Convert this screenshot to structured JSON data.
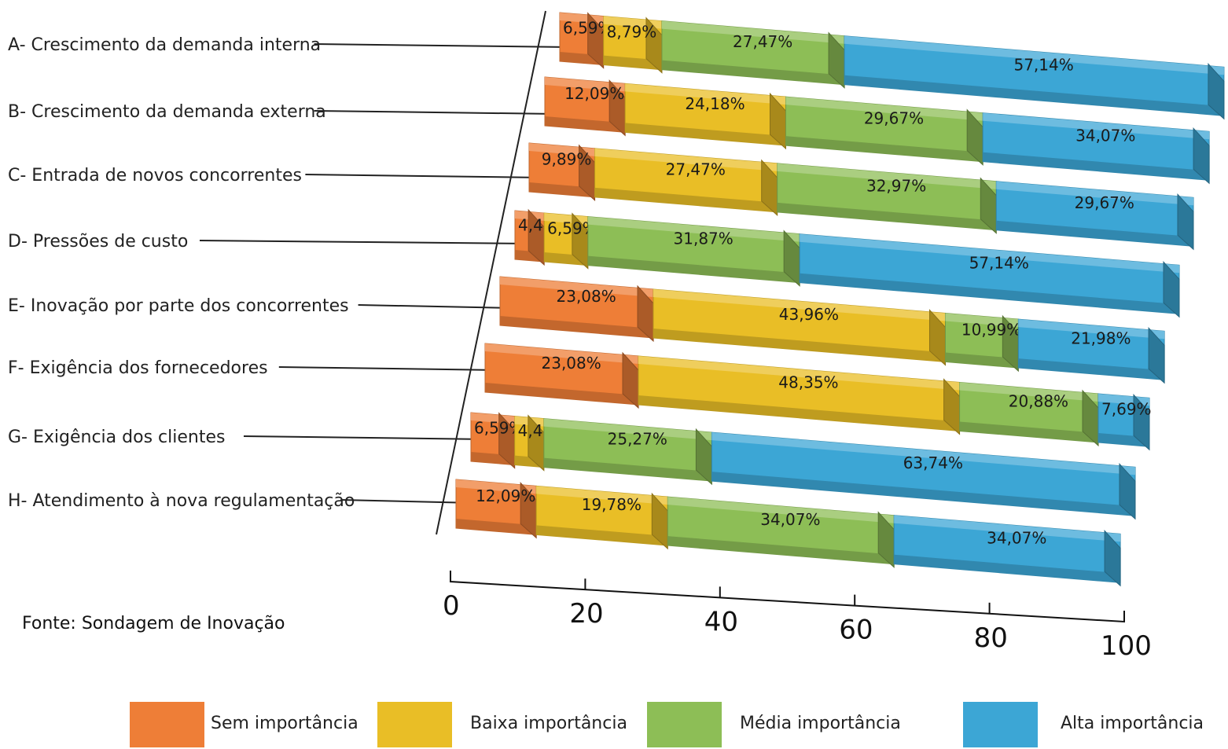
{
  "chart_data": {
    "type": "bar",
    "stacked": true,
    "orientation": "horizontal",
    "style": "3d",
    "categories": [
      "A- Crescimento da demanda interna",
      "B- Crescimento da demanda externa",
      "C- Entrada de novos concorrentes",
      "D- Pressões de custo",
      "E- Inovação por parte dos concorrentes",
      "F- Exigência dos fornecedores",
      "G- Exigência dos clientes",
      "H- Atendimento à nova regulamentação"
    ],
    "series": [
      {
        "name": "Sem importância",
        "color": "#EE7E37",
        "values": [
          6.59,
          12.09,
          9.89,
          4.4,
          23.08,
          23.08,
          6.59,
          12.09
        ],
        "labels": [
          "6,59%",
          "12,09%",
          "9,89%",
          "4,40%",
          "23,08%",
          "23,08%",
          "6,59%",
          "12,09%"
        ]
      },
      {
        "name": "Baixa importância",
        "color": "#E9BE26",
        "values": [
          8.79,
          24.18,
          27.47,
          6.59,
          43.96,
          48.35,
          4.4,
          19.78
        ],
        "labels": [
          "8,79%",
          "24,18%",
          "27,47%",
          "6,59%",
          "43,96%",
          "48,35%",
          "4,40%",
          "19,78%"
        ]
      },
      {
        "name": "Média importância",
        "color": "#8DBE56",
        "values": [
          27.47,
          29.67,
          32.97,
          31.87,
          10.99,
          20.88,
          25.27,
          34.07
        ],
        "labels": [
          "27,47%",
          "29,67%",
          "32,97%",
          "31,87%",
          "10,99%",
          "20,88%",
          "25,27%",
          "34,07%"
        ]
      },
      {
        "name": "Alta importância",
        "color": "#3CA6D5",
        "values": [
          57.14,
          34.07,
          29.67,
          57.14,
          21.98,
          7.69,
          63.74,
          34.07
        ],
        "labels": [
          "57,14%",
          "34,07%",
          "29,67%",
          "57,14%",
          "21,98%",
          "7,69%",
          "63,74%",
          "34,07%"
        ]
      }
    ],
    "xaxis": {
      "ticks": [
        "0",
        "20",
        "40",
        "60",
        "80",
        "100"
      ]
    },
    "xlim": [
      0,
      100
    ],
    "legend": "bottom",
    "grid": false
  },
  "source": "Fonte: Sondagem de Inovação"
}
